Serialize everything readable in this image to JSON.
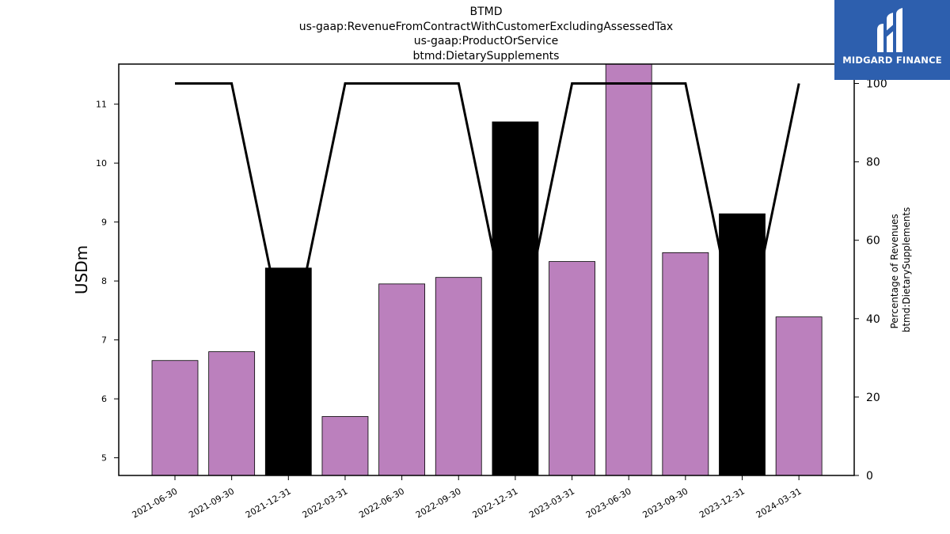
{
  "title_lines": [
    "BTMD",
    "us-gaap:RevenueFromContractWithCustomerExcludingAssessedTax",
    "us-gaap:ProductOrService",
    "btmd:DietarySupplements"
  ],
  "logo": {
    "text": "MIDGARD FINANCE",
    "background": "#2d5fae"
  },
  "chart_data": {
    "type": "bar",
    "categories": [
      "2021-06-30",
      "2021-09-30",
      "2021-12-31",
      "2022-03-31",
      "2022-06-30",
      "2022-09-30",
      "2022-12-31",
      "2023-03-31",
      "2023-06-30",
      "2023-09-30",
      "2023-12-31",
      "2024-03-31"
    ],
    "series": [
      {
        "type": "bar",
        "axis": "left",
        "values": [
          6.65,
          6.8,
          8.22,
          5.7,
          7.95,
          8.06,
          10.7,
          8.33,
          11.7,
          8.48,
          9.14,
          7.39
        ],
        "colors": [
          "#bb80bd",
          "#bb80bd",
          "#000000",
          "#bb80bd",
          "#bb80bd",
          "#bb80bd",
          "#000000",
          "#bb80bd",
          "#bb80bd",
          "#bb80bd",
          "#000000",
          "#bb80bd"
        ]
      },
      {
        "type": "line",
        "axis": "right",
        "values": [
          100,
          100,
          30,
          100,
          100,
          100,
          30,
          100,
          100,
          100,
          30,
          100
        ],
        "color": "#000000"
      }
    ],
    "ylabel": "USDm",
    "y2label_lines": [
      "Percentage of Revenues",
      "btmd:DietarySupplements"
    ],
    "ylim": [
      4.7,
      11.68
    ],
    "y_ticks": [
      5,
      6,
      7,
      8,
      9,
      10,
      11
    ],
    "y2lim": [
      0,
      100
    ],
    "y2_ticks": [
      0,
      20,
      40,
      60,
      80,
      100
    ],
    "grid": false,
    "legend": "none"
  }
}
